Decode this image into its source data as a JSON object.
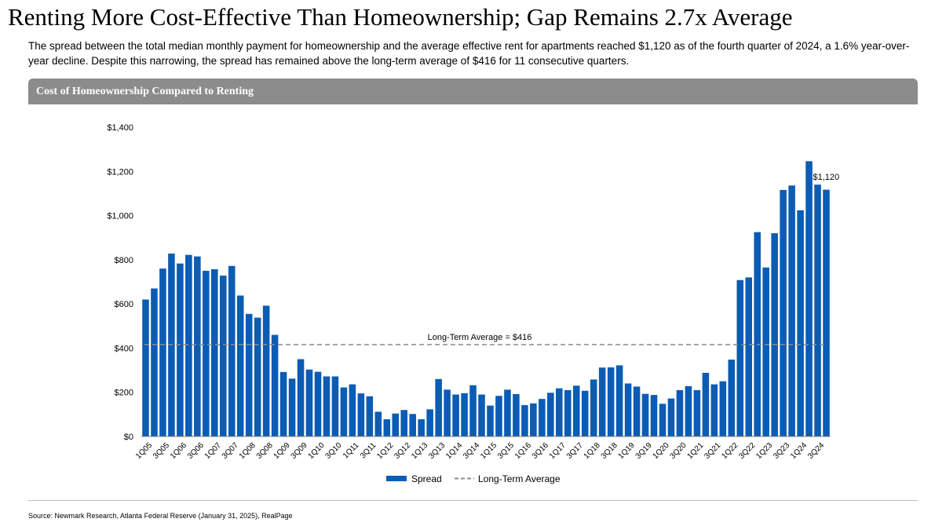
{
  "title": "Renting More Cost-Effective Than Homeownership; Gap Remains 2.7x Average",
  "subtitle": "The spread between the total median monthly payment for homeownership and the average effective rent for apartments reached $1,120 as of the fourth quarter of 2024, a 1.6% year-over-year decline. Despite this narrowing, the spread has remained above the long-term average of $416 for 11 consecutive quarters.",
  "panel_title": "Cost of Homeownership Compared to Renting",
  "source": "Source: Newmark Research, Atlanta Federal Reserve (January 31, 2025), RealPage",
  "colors": {
    "bar": "#0a5cb5",
    "average_line": "#8c8c8c",
    "header": "#8c8c8c"
  },
  "chart_data": {
    "type": "bar",
    "title": "Cost of Homeownership Compared to Renting",
    "xlabel": "",
    "ylabel": "",
    "ylim": [
      0,
      1400
    ],
    "yticks": [
      0,
      200,
      400,
      600,
      800,
      1000,
      1200,
      1400
    ],
    "ytick_labels": [
      "$0",
      "$200",
      "$400",
      "$600",
      "$800",
      "$1,000",
      "$1,200",
      "$1,400"
    ],
    "grid": false,
    "legend_position": "bottom",
    "categories": [
      "1Q05",
      "2Q05",
      "3Q05",
      "4Q05",
      "1Q06",
      "2Q06",
      "3Q06",
      "4Q06",
      "1Q07",
      "2Q07",
      "3Q07",
      "4Q07",
      "1Q08",
      "2Q08",
      "3Q08",
      "4Q08",
      "1Q09",
      "2Q09",
      "3Q09",
      "4Q09",
      "1Q10",
      "2Q10",
      "3Q10",
      "4Q10",
      "1Q11",
      "2Q11",
      "3Q11",
      "4Q11",
      "1Q12",
      "2Q12",
      "3Q12",
      "4Q12",
      "1Q13",
      "2Q13",
      "3Q13",
      "4Q13",
      "1Q14",
      "2Q14",
      "3Q14",
      "4Q14",
      "1Q15",
      "2Q15",
      "3Q15",
      "4Q15",
      "1Q16",
      "2Q16",
      "3Q16",
      "4Q16",
      "1Q17",
      "2Q17",
      "3Q17",
      "4Q17",
      "1Q18",
      "2Q18",
      "3Q18",
      "4Q18",
      "1Q19",
      "2Q19",
      "3Q19",
      "4Q19",
      "1Q20",
      "2Q20",
      "3Q20",
      "4Q20",
      "1Q21",
      "2Q21",
      "3Q21",
      "4Q21",
      "1Q22",
      "2Q22",
      "3Q22",
      "4Q22",
      "1Q23",
      "2Q23",
      "3Q23",
      "4Q23",
      "1Q24",
      "2Q24",
      "3Q24",
      "4Q24"
    ],
    "xtick_labels": [
      "1Q05",
      "3Q05",
      "1Q06",
      "3Q06",
      "1Q07",
      "3Q07",
      "1Q08",
      "3Q08",
      "1Q09",
      "3Q09",
      "1Q10",
      "3Q10",
      "1Q11",
      "3Q11",
      "1Q12",
      "3Q12",
      "1Q13",
      "3Q13",
      "1Q14",
      "3Q14",
      "1Q15",
      "3Q15",
      "1Q16",
      "3Q16",
      "1Q17",
      "3Q17",
      "1Q18",
      "3Q18",
      "1Q19",
      "3Q19",
      "1Q20",
      "3Q20",
      "1Q21",
      "3Q21",
      "1Q22",
      "3Q22",
      "1Q23",
      "3Q23",
      "1Q24",
      "3Q24"
    ],
    "series": [
      {
        "name": "Spread",
        "values": [
          620,
          670,
          760,
          828,
          783,
          822,
          815,
          750,
          757,
          728,
          772,
          638,
          555,
          538,
          592,
          460,
          292,
          262,
          350,
          303,
          293,
          272,
          272,
          222,
          236,
          195,
          182,
          112,
          78,
          104,
          120,
          102,
          78,
          123,
          260,
          212,
          190,
          196,
          232,
          190,
          140,
          184,
          212,
          192,
          142,
          150,
          170,
          198,
          218,
          210,
          230,
          207,
          258,
          312,
          313,
          322,
          240,
          226,
          193,
          188,
          148,
          172,
          210,
          228,
          210,
          288,
          236,
          250,
          348,
          708,
          720,
          925,
          765,
          920,
          1116,
          1136,
          1024,
          1246,
          1140,
          1117
        ]
      },
      {
        "name": "Long-Term Average",
        "value": 416
      }
    ],
    "annotations": [
      {
        "text": "Long-Term Average = $416",
        "y": 416
      },
      {
        "text": "$1,120",
        "category": "4Q24"
      }
    ]
  }
}
